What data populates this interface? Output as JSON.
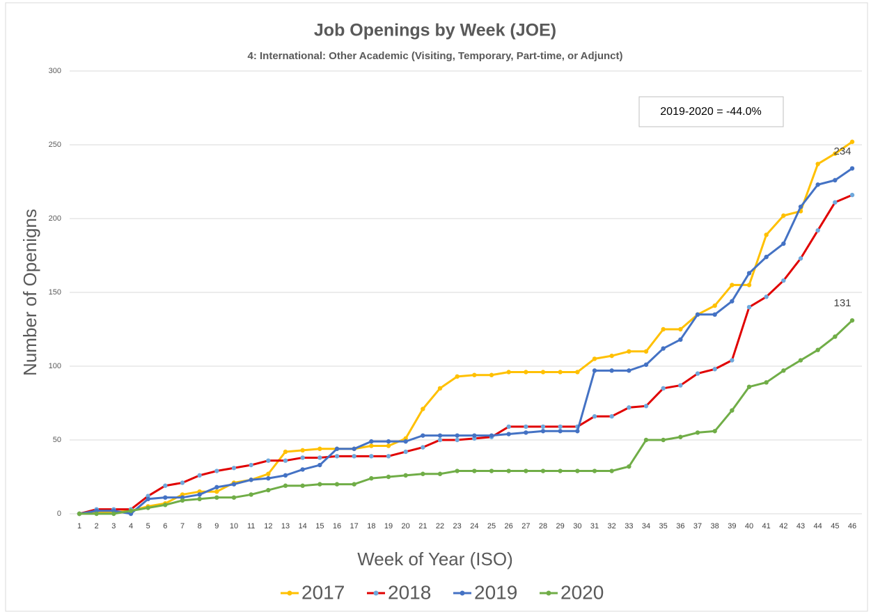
{
  "chart_data": {
    "type": "line",
    "title": "Job Openings by Week (JOE)",
    "subtitle": "4: International: Other Academic (Visiting, Temporary, Part-time, or Adjunct)",
    "x_label": "Week of Year (ISO)",
    "y_label": "Number of Openigns",
    "annotation": "2019-2020 = -44.0%",
    "categories": [
      "1",
      "2",
      "3",
      "4",
      "5",
      "6",
      "7",
      "8",
      "9",
      "10",
      "11",
      "12",
      "13",
      "14",
      "15",
      "16",
      "17",
      "18",
      "19",
      "20",
      "21",
      "22",
      "23",
      "24",
      "25",
      "26",
      "27",
      "28",
      "29",
      "30",
      "31",
      "32",
      "33",
      "34",
      "35",
      "36",
      "37",
      "38",
      "39",
      "40",
      "41",
      "42",
      "43",
      "44",
      "45",
      "46"
    ],
    "ylim": [
      0,
      300
    ],
    "yticks": [
      0,
      50,
      100,
      150,
      200,
      250,
      300
    ],
    "grid": true,
    "legend": "bottom",
    "series": [
      {
        "name": "2017",
        "color": "#ffc000",
        "marker_color": "#ffc000",
        "show_last_label": false,
        "values": [
          0,
          1,
          1,
          2,
          5,
          7,
          13,
          15,
          15,
          21,
          23,
          27,
          42,
          43,
          44,
          44,
          44,
          46,
          46,
          51,
          71,
          85,
          93,
          94,
          94,
          96,
          96,
          96,
          96,
          96,
          105,
          107,
          110,
          110,
          125,
          125,
          135,
          141,
          155,
          155,
          189,
          202,
          205,
          237,
          244,
          252
        ]
      },
      {
        "name": "2018",
        "color": "#e00000",
        "marker_color": "#6fa8dc",
        "show_last_label": false,
        "values": [
          0,
          3,
          3,
          3,
          12,
          19,
          21,
          26,
          29,
          31,
          33,
          36,
          36,
          38,
          38,
          39,
          39,
          39,
          39,
          42,
          45,
          50,
          50,
          51,
          52,
          59,
          59,
          59,
          59,
          59,
          66,
          66,
          72,
          73,
          85,
          87,
          95,
          98,
          104,
          140,
          147,
          158,
          173,
          192,
          211,
          216
        ]
      },
      {
        "name": "2019",
        "color": "#4472c4",
        "marker_color": "#4472c4",
        "show_last_label": true,
        "values": [
          0,
          2,
          2,
          0,
          10,
          11,
          11,
          13,
          18,
          20,
          23,
          24,
          26,
          30,
          33,
          44,
          44,
          49,
          49,
          49,
          53,
          53,
          53,
          53,
          53,
          54,
          55,
          56,
          56,
          56,
          97,
          97,
          97,
          101,
          112,
          118,
          135,
          135,
          144,
          163,
          174,
          183,
          208,
          223,
          226,
          234
        ]
      },
      {
        "name": "2020",
        "color": "#70ad47",
        "marker_color": "#70ad47",
        "show_last_label": true,
        "values": [
          0,
          0,
          0,
          2,
          4,
          6,
          9,
          10,
          11,
          11,
          13,
          16,
          19,
          19,
          20,
          20,
          20,
          24,
          25,
          26,
          27,
          27,
          29,
          29,
          29,
          29,
          29,
          29,
          29,
          29,
          29,
          29,
          32,
          50,
          50,
          52,
          55,
          56,
          70,
          86,
          89,
          97,
          104,
          111,
          120,
          131
        ]
      }
    ]
  }
}
